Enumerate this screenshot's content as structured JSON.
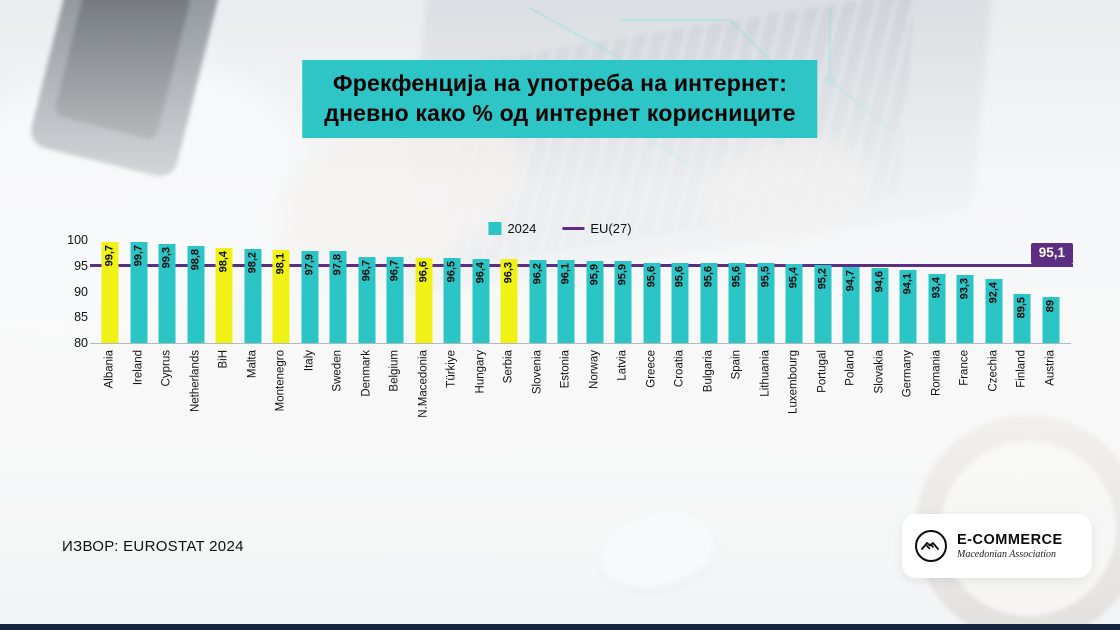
{
  "title": {
    "line1": "Фрекфенција на употреба на интернет:",
    "line2": "дневно како % од интернет корисниците"
  },
  "legend": {
    "series_label": "2024",
    "line_label": "EU(27)"
  },
  "source": "ИЗВОР: EUROSTAT 2024",
  "logo": {
    "name": "E-COMMERCE",
    "subtitle": "Macedonian Association"
  },
  "colors": {
    "bar": "#2CC5C6",
    "highlight_bar": "#F0F215",
    "eu_line": "#5C2D83",
    "title_bg": "#2EC5C6",
    "bottom_strip": "#16243F"
  },
  "chart_data": {
    "type": "bar",
    "title": "Фрекфенција на употреба на интернет: дневно како % од интернет корисниците",
    "ylim": [
      80,
      100
    ],
    "yticks": [
      80,
      85,
      90,
      95,
      100
    ],
    "legend_position": "top",
    "eu_line": {
      "label": "95,1",
      "value": 95.1
    },
    "items": [
      {
        "country": "Albania",
        "value": 99.7,
        "label": "99,7",
        "highlight": true
      },
      {
        "country": "Ireland",
        "value": 99.7,
        "label": "99,7",
        "highlight": false
      },
      {
        "country": "Cyprus",
        "value": 99.3,
        "label": "99,3",
        "highlight": false
      },
      {
        "country": "Netherlands",
        "value": 98.8,
        "label": "98,8",
        "highlight": false
      },
      {
        "country": "BiH",
        "value": 98.4,
        "label": "98,4",
        "highlight": true
      },
      {
        "country": "Malta",
        "value": 98.2,
        "label": "98,2",
        "highlight": false
      },
      {
        "country": "Montenegro",
        "value": 98.1,
        "label": "98,1",
        "highlight": true
      },
      {
        "country": "Italy",
        "value": 97.9,
        "label": "97,9",
        "highlight": false
      },
      {
        "country": "Sweden",
        "value": 97.8,
        "label": "97,8",
        "highlight": false
      },
      {
        "country": "Denmark",
        "value": 96.7,
        "label": "96,7",
        "highlight": false
      },
      {
        "country": "Belgium",
        "value": 96.7,
        "label": "96,7",
        "highlight": false
      },
      {
        "country": "N.Macedonia",
        "value": 96.6,
        "label": "96,6",
        "highlight": true
      },
      {
        "country": "Türkiye",
        "value": 96.5,
        "label": "96,5",
        "highlight": false
      },
      {
        "country": "Hungary",
        "value": 96.4,
        "label": "96,4",
        "highlight": false
      },
      {
        "country": "Serbia",
        "value": 96.3,
        "label": "96,3",
        "highlight": true
      },
      {
        "country": "Slovenia",
        "value": 96.2,
        "label": "96,2",
        "highlight": false
      },
      {
        "country": "Estonia",
        "value": 96.1,
        "label": "96,1",
        "highlight": false
      },
      {
        "country": "Norway",
        "value": 95.9,
        "label": "95,9",
        "highlight": false
      },
      {
        "country": "Latvia",
        "value": 95.9,
        "label": "95,9",
        "highlight": false
      },
      {
        "country": "Greece",
        "value": 95.6,
        "label": "95,6",
        "highlight": false
      },
      {
        "country": "Croatia",
        "value": 95.6,
        "label": "95,6",
        "highlight": false
      },
      {
        "country": "Bulgaria",
        "value": 95.6,
        "label": "95,6",
        "highlight": false
      },
      {
        "country": "Spain",
        "value": 95.6,
        "label": "95,6",
        "highlight": false
      },
      {
        "country": "Lithuania",
        "value": 95.5,
        "label": "95,5",
        "highlight": false
      },
      {
        "country": "Luxembourg",
        "value": 95.4,
        "label": "95,4",
        "highlight": false
      },
      {
        "country": "Portugal",
        "value": 95.2,
        "label": "95,2",
        "highlight": false
      },
      {
        "country": "Poland",
        "value": 94.7,
        "label": "94,7",
        "highlight": false
      },
      {
        "country": "Slovakia",
        "value": 94.6,
        "label": "94,6",
        "highlight": false
      },
      {
        "country": "Germany",
        "value": 94.1,
        "label": "94,1",
        "highlight": false
      },
      {
        "country": "Romania",
        "value": 93.4,
        "label": "93,4",
        "highlight": false
      },
      {
        "country": "France",
        "value": 93.3,
        "label": "93,3",
        "highlight": false
      },
      {
        "country": "Czechia",
        "value": 92.4,
        "label": "92,4",
        "highlight": false
      },
      {
        "country": "Finland",
        "value": 89.5,
        "label": "89,5",
        "highlight": false
      },
      {
        "country": "Austria",
        "value": 89,
        "label": "89",
        "highlight": false
      }
    ]
  }
}
